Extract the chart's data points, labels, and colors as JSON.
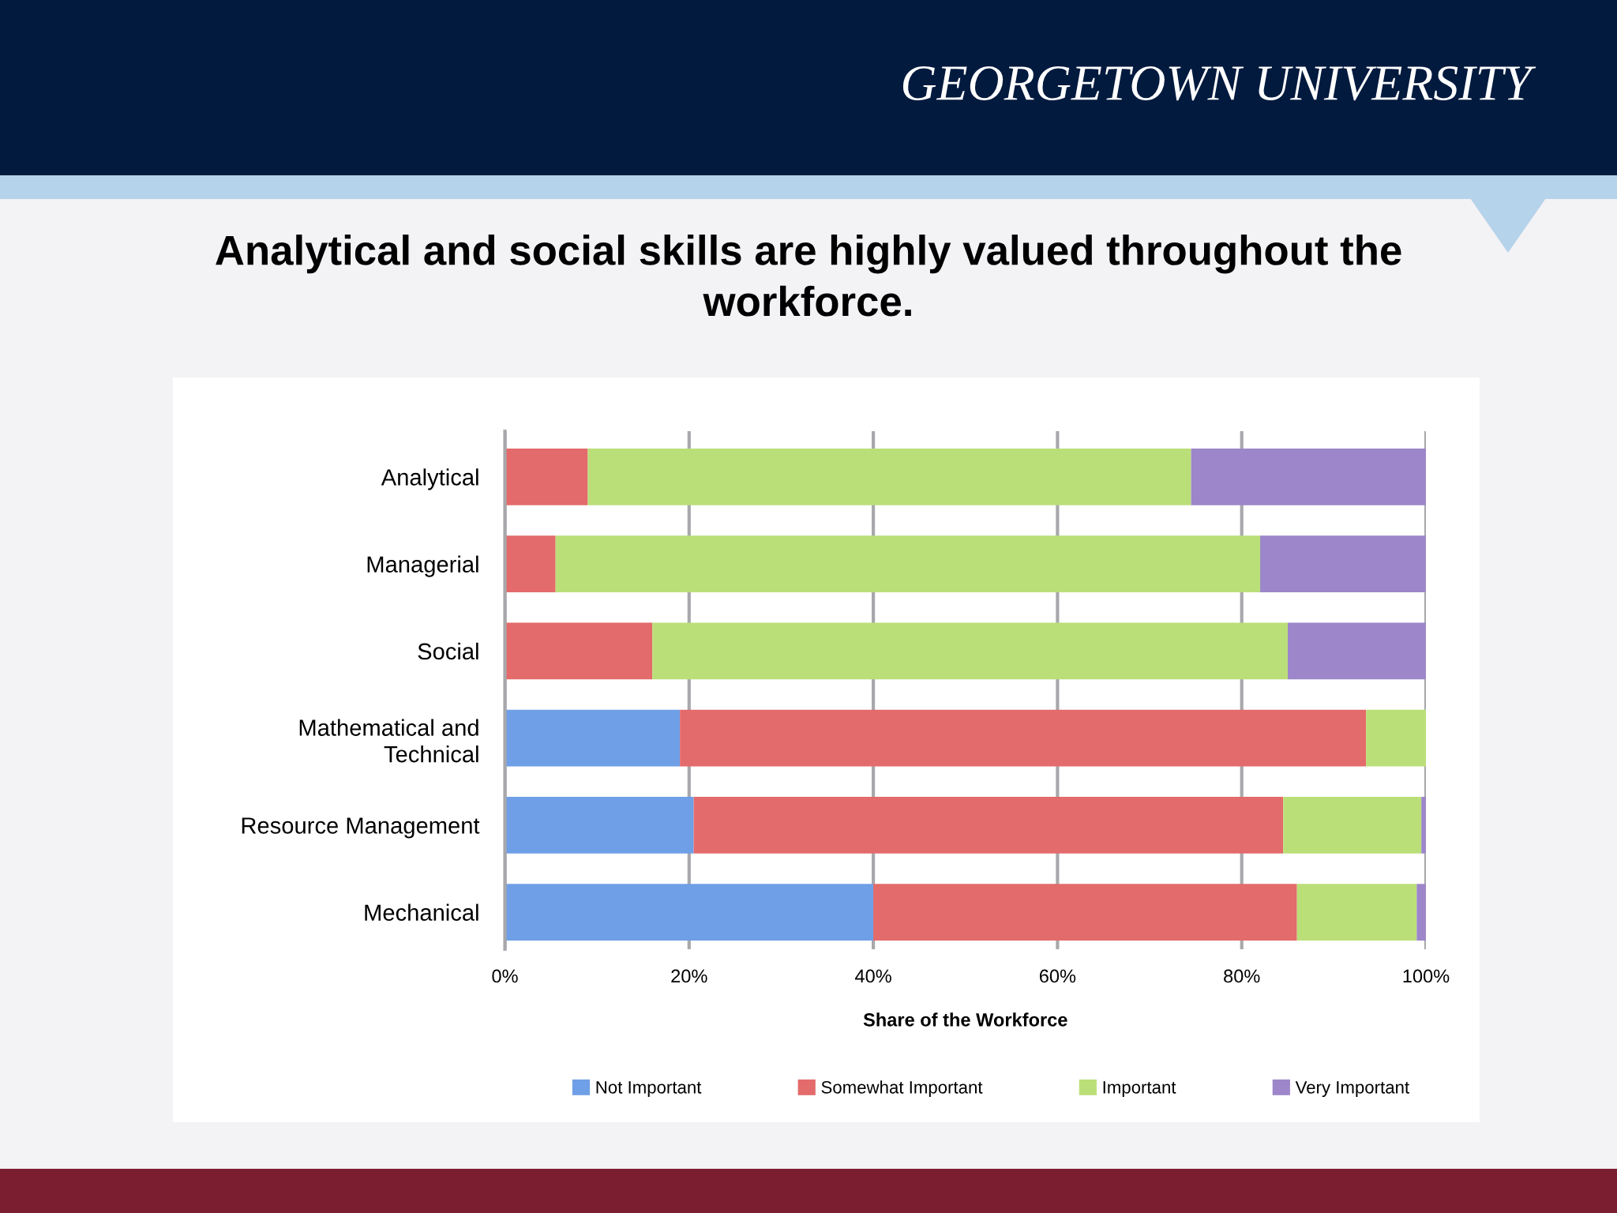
{
  "chart_data": {
    "type": "bar",
    "orientation": "horizontal",
    "stacked": true,
    "title": "Analytical and social skills are highly valued throughout the\nworkforce.",
    "xlabel": "Share of the Workforce",
    "categories": [
      "Analytical",
      "Managerial",
      "Social",
      "Mathematical and\nTechnical",
      "Resource Management",
      "Mechanical"
    ],
    "series": [
      {
        "name": "Not Important",
        "color": "#6f9fe6",
        "values": [
          null,
          null,
          null,
          19,
          20.5,
          40
        ]
      },
      {
        "name": "Somewhat Important",
        "color": "#e36b6b",
        "values": [
          9,
          5.5,
          16,
          74.5,
          64,
          46
        ]
      },
      {
        "name": "Important",
        "color": "#bbdf78",
        "values": [
          65.5,
          76.5,
          69,
          6.5,
          15,
          13
        ]
      },
      {
        "name": "Very Important",
        "color": "#9d86c9",
        "values": [
          25.5,
          18,
          15,
          null,
          0.5,
          1
        ]
      }
    ],
    "xlim": [
      0,
      100
    ],
    "xticks": [
      {
        "value": 0,
        "label": "0%"
      },
      {
        "value": 20,
        "label": "20%"
      },
      {
        "value": 40,
        "label": "40%"
      },
      {
        "value": 60,
        "label": "60%"
      },
      {
        "value": 80,
        "label": "80%"
      },
      {
        "value": 100,
        "label": "100%"
      }
    ],
    "grid": "x",
    "legend": "bottom",
    "annotations": [
      "GEORGETOWN UNIVERSITY"
    ]
  }
}
